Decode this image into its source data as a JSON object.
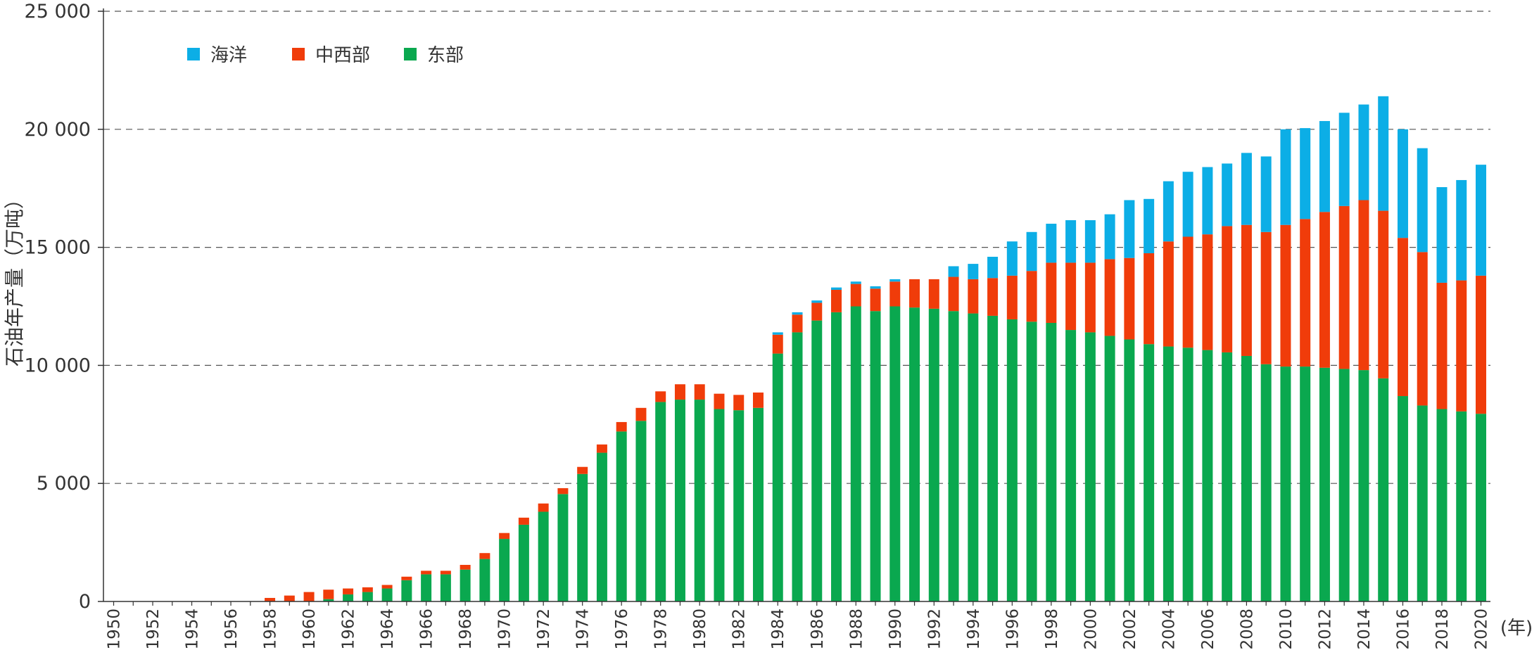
{
  "chart_data": {
    "type": "bar",
    "stacked": true,
    "ylabel": "石油年产量（万吨）",
    "xunit_label": "(年)",
    "ylim": [
      0,
      25000
    ],
    "yticks": [
      0,
      5000,
      10000,
      15000,
      20000,
      25000
    ],
    "ytick_labels": [
      "0",
      "5 000",
      "10 000",
      "15 000",
      "20 000",
      "25 000"
    ],
    "grid": "horizontal dashed",
    "legend_position": "top-left",
    "legend_order": [
      2,
      1,
      0
    ],
    "categories": [
      1950,
      1951,
      1952,
      1953,
      1954,
      1955,
      1956,
      1957,
      1958,
      1959,
      1960,
      1961,
      1962,
      1963,
      1964,
      1965,
      1966,
      1967,
      1968,
      1969,
      1970,
      1971,
      1972,
      1973,
      1974,
      1975,
      1976,
      1977,
      1978,
      1979,
      1980,
      1981,
      1982,
      1983,
      1984,
      1985,
      1986,
      1987,
      1988,
      1989,
      1990,
      1991,
      1992,
      1993,
      1994,
      1995,
      1996,
      1997,
      1998,
      1999,
      2000,
      2001,
      2002,
      2003,
      2004,
      2005,
      2006,
      2007,
      2008,
      2009,
      2010,
      2011,
      2012,
      2013,
      2014,
      2015,
      2016,
      2017,
      2018,
      2019,
      2020
    ],
    "xtick_labels": [
      "1950",
      "1952",
      "1954",
      "1956",
      "1958",
      "1960",
      "1962",
      "1964",
      "1966",
      "1968",
      "1970",
      "1972",
      "1974",
      "1976",
      "1978",
      "1980",
      "1982",
      "1984",
      "1986",
      "1988",
      "1990",
      "1992",
      "1994",
      "1996",
      "1998",
      "2000",
      "2002",
      "2004",
      "2006",
      "2008",
      "2010",
      "2012",
      "2014",
      "2016",
      "2018",
      "2020"
    ],
    "series": [
      {
        "name": "东部",
        "color": "#0aa84f",
        "values": [
          0,
          0,
          0,
          0,
          0,
          0,
          0,
          0,
          0,
          0,
          0,
          100,
          300,
          400,
          550,
          900,
          1150,
          1150,
          1350,
          1800,
          2650,
          3250,
          3800,
          4550,
          5400,
          6300,
          7200,
          7650,
          8450,
          8550,
          8550,
          8150,
          8100,
          8200,
          10500,
          11400,
          11900,
          12250,
          12500,
          12300,
          12500,
          12450,
          12400,
          12300,
          12200,
          12100,
          11950,
          11850,
          11800,
          11500,
          11400,
          11250,
          11100,
          10900,
          10800,
          10750,
          10650,
          10550,
          10400,
          10050,
          9950,
          9950,
          9900,
          9850,
          9800,
          9450,
          8700,
          8300,
          8150,
          8050,
          7950
        ]
      },
      {
        "name": "中西部",
        "color": "#f03c0a",
        "values": [
          0,
          0,
          0,
          0,
          0,
          0,
          0,
          0,
          150,
          250,
          400,
          400,
          250,
          200,
          150,
          150,
          150,
          150,
          200,
          250,
          250,
          300,
          350,
          250,
          300,
          350,
          400,
          550,
          450,
          650,
          650,
          650,
          650,
          650,
          800,
          750,
          750,
          950,
          950,
          950,
          1050,
          1200,
          1250,
          1450,
          1450,
          1600,
          1850,
          2150,
          2550,
          2850,
          2950,
          3250,
          3450,
          3850,
          4450,
          4700,
          4900,
          5350,
          5550,
          5600,
          6000,
          6250,
          6600,
          6900,
          7200,
          7100,
          6700,
          6500,
          5350,
          5550,
          5850
        ]
      },
      {
        "name": "海洋",
        "color": "#0caee6",
        "values": [
          0,
          0,
          0,
          0,
          0,
          0,
          0,
          0,
          0,
          0,
          0,
          0,
          0,
          0,
          0,
          0,
          0,
          0,
          0,
          0,
          0,
          0,
          0,
          0,
          0,
          0,
          0,
          0,
          0,
          0,
          0,
          0,
          0,
          0,
          100,
          100,
          100,
          100,
          100,
          100,
          100,
          0,
          0,
          450,
          650,
          900,
          1450,
          1650,
          1650,
          1800,
          1800,
          1900,
          2450,
          2300,
          2550,
          2750,
          2850,
          2650,
          3050,
          3200,
          4050,
          3850,
          3850,
          3950,
          4050,
          4850,
          4600,
          4400,
          4050,
          4250,
          4700
        ]
      }
    ]
  }
}
